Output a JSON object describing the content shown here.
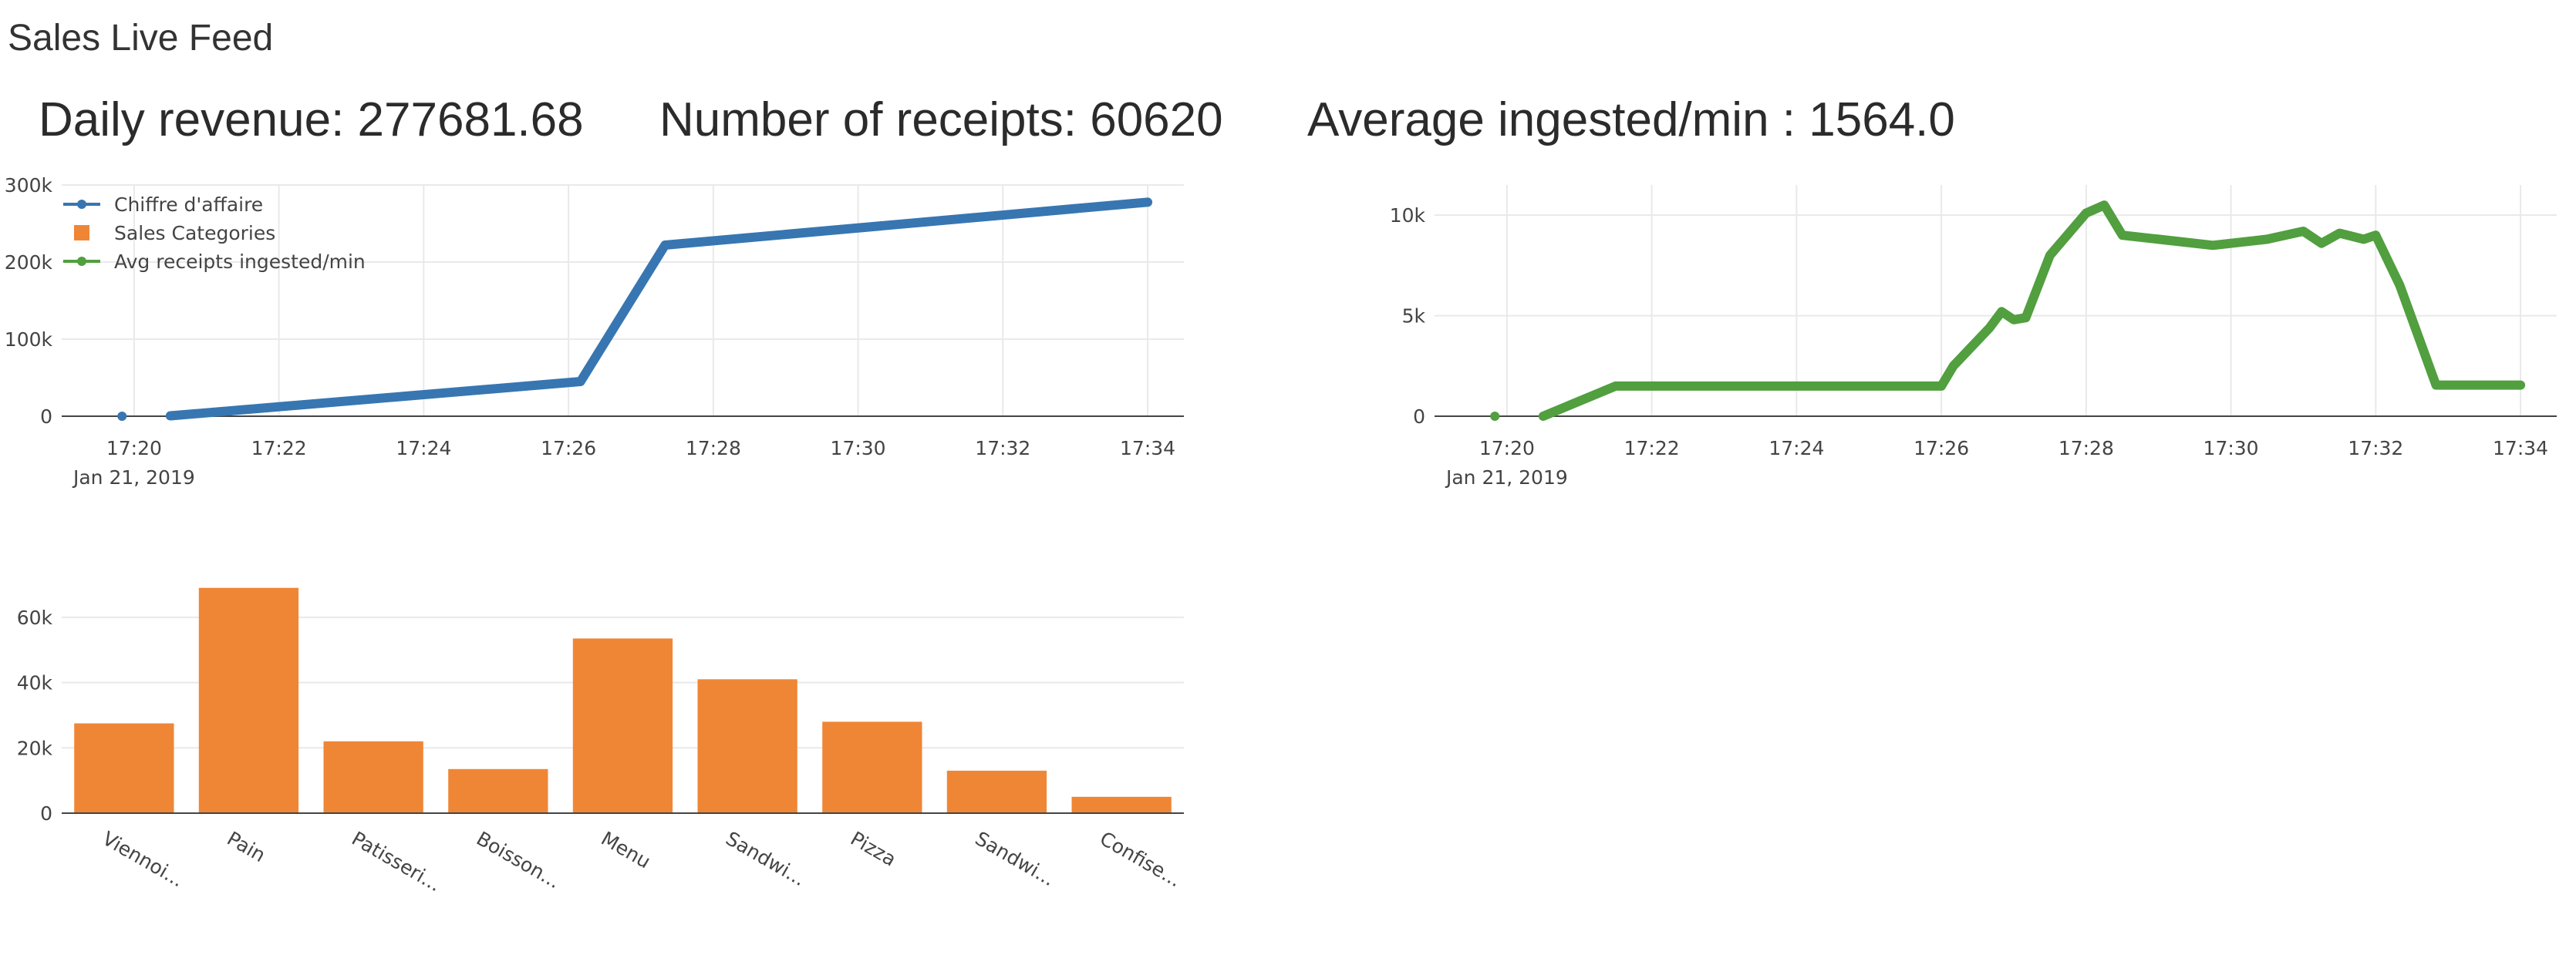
{
  "page": {
    "title": "Sales Live Feed"
  },
  "stats": [
    {
      "label": "Daily revenue",
      "text": "Daily revenue: 277681.68"
    },
    {
      "label": "Number of receipts",
      "text": "Number of receipts: 60620"
    },
    {
      "label": "Average ingested/min",
      "text": "Average ingested/min : 1564.0"
    }
  ],
  "colors": {
    "revenue": "#3776b1",
    "categories": "#ef8636",
    "ingested": "#519f3f",
    "grid": "#e9e9e9"
  },
  "legend": {
    "items": [
      {
        "name": "Chiffre d'affaire",
        "color": "#3776b1",
        "symbol": "line-marker"
      },
      {
        "name": "Sales Categories",
        "color": "#ef8636",
        "symbol": "square"
      },
      {
        "name": "Avg receipts ingested/min",
        "color": "#519f3f",
        "symbol": "line-marker"
      }
    ],
    "placement": "top-left"
  },
  "chart_data": [
    {
      "type": "line",
      "series_name": "Chiffre d'affaire",
      "x": [
        "17:19:50",
        "17:20:30",
        "17:26:10",
        "17:27:20",
        "17:34:00"
      ],
      "y": [
        0,
        500,
        45000,
        222000,
        277681.68
      ],
      "xticks": [
        "17:20",
        "17:22",
        "17:24",
        "17:26",
        "17:28",
        "17:30",
        "17:32",
        "17:34"
      ],
      "xtick_sub": "Jan 21, 2019",
      "yticks": [
        "0",
        "100k",
        "200k",
        "300k"
      ],
      "ylim": [
        0,
        300000
      ],
      "grid": true
    },
    {
      "type": "line",
      "series_name": "Avg receipts ingested/min",
      "x": [
        "17:19:50",
        "17:20:30",
        "17:21:30",
        "17:26:00",
        "17:26:10",
        "17:26:40",
        "17:26:50",
        "17:27:00",
        "17:27:10",
        "17:27:30",
        "17:28:00",
        "17:28:15",
        "17:28:30",
        "17:29:00",
        "17:29:45",
        "17:30:30",
        "17:31:00",
        "17:31:15",
        "17:31:30",
        "17:31:50",
        "17:32:00",
        "17:32:20",
        "17:32:50",
        "17:34:00"
      ],
      "y": [
        0,
        0,
        1500,
        1500,
        2500,
        4400,
        5200,
        4800,
        4900,
        8000,
        10100,
        10500,
        9000,
        8800,
        8500,
        8800,
        9200,
        8600,
        9100,
        8800,
        9000,
        6500,
        1550,
        1550
      ],
      "xticks": [
        "17:20",
        "17:22",
        "17:24",
        "17:26",
        "17:28",
        "17:30",
        "17:32",
        "17:34"
      ],
      "xtick_sub": "Jan 21, 2019",
      "yticks": [
        "0",
        "5k",
        "10k"
      ],
      "ylim": [
        0,
        11500
      ],
      "grid": true
    },
    {
      "type": "bar",
      "series_name": "Sales Categories",
      "categories": [
        "Viennoi...",
        "Pain",
        "Patisseri...",
        "Boisson...",
        "Menu",
        "Sandwi...",
        "Pizza",
        "Sandwi...",
        "Confise..."
      ],
      "values": [
        27500,
        69000,
        22000,
        13500,
        53500,
        41000,
        28000,
        13000,
        5000
      ],
      "yticks": [
        "0",
        "20k",
        "40k",
        "60k"
      ],
      "ylim": [
        0,
        72000
      ],
      "grid": true
    }
  ]
}
